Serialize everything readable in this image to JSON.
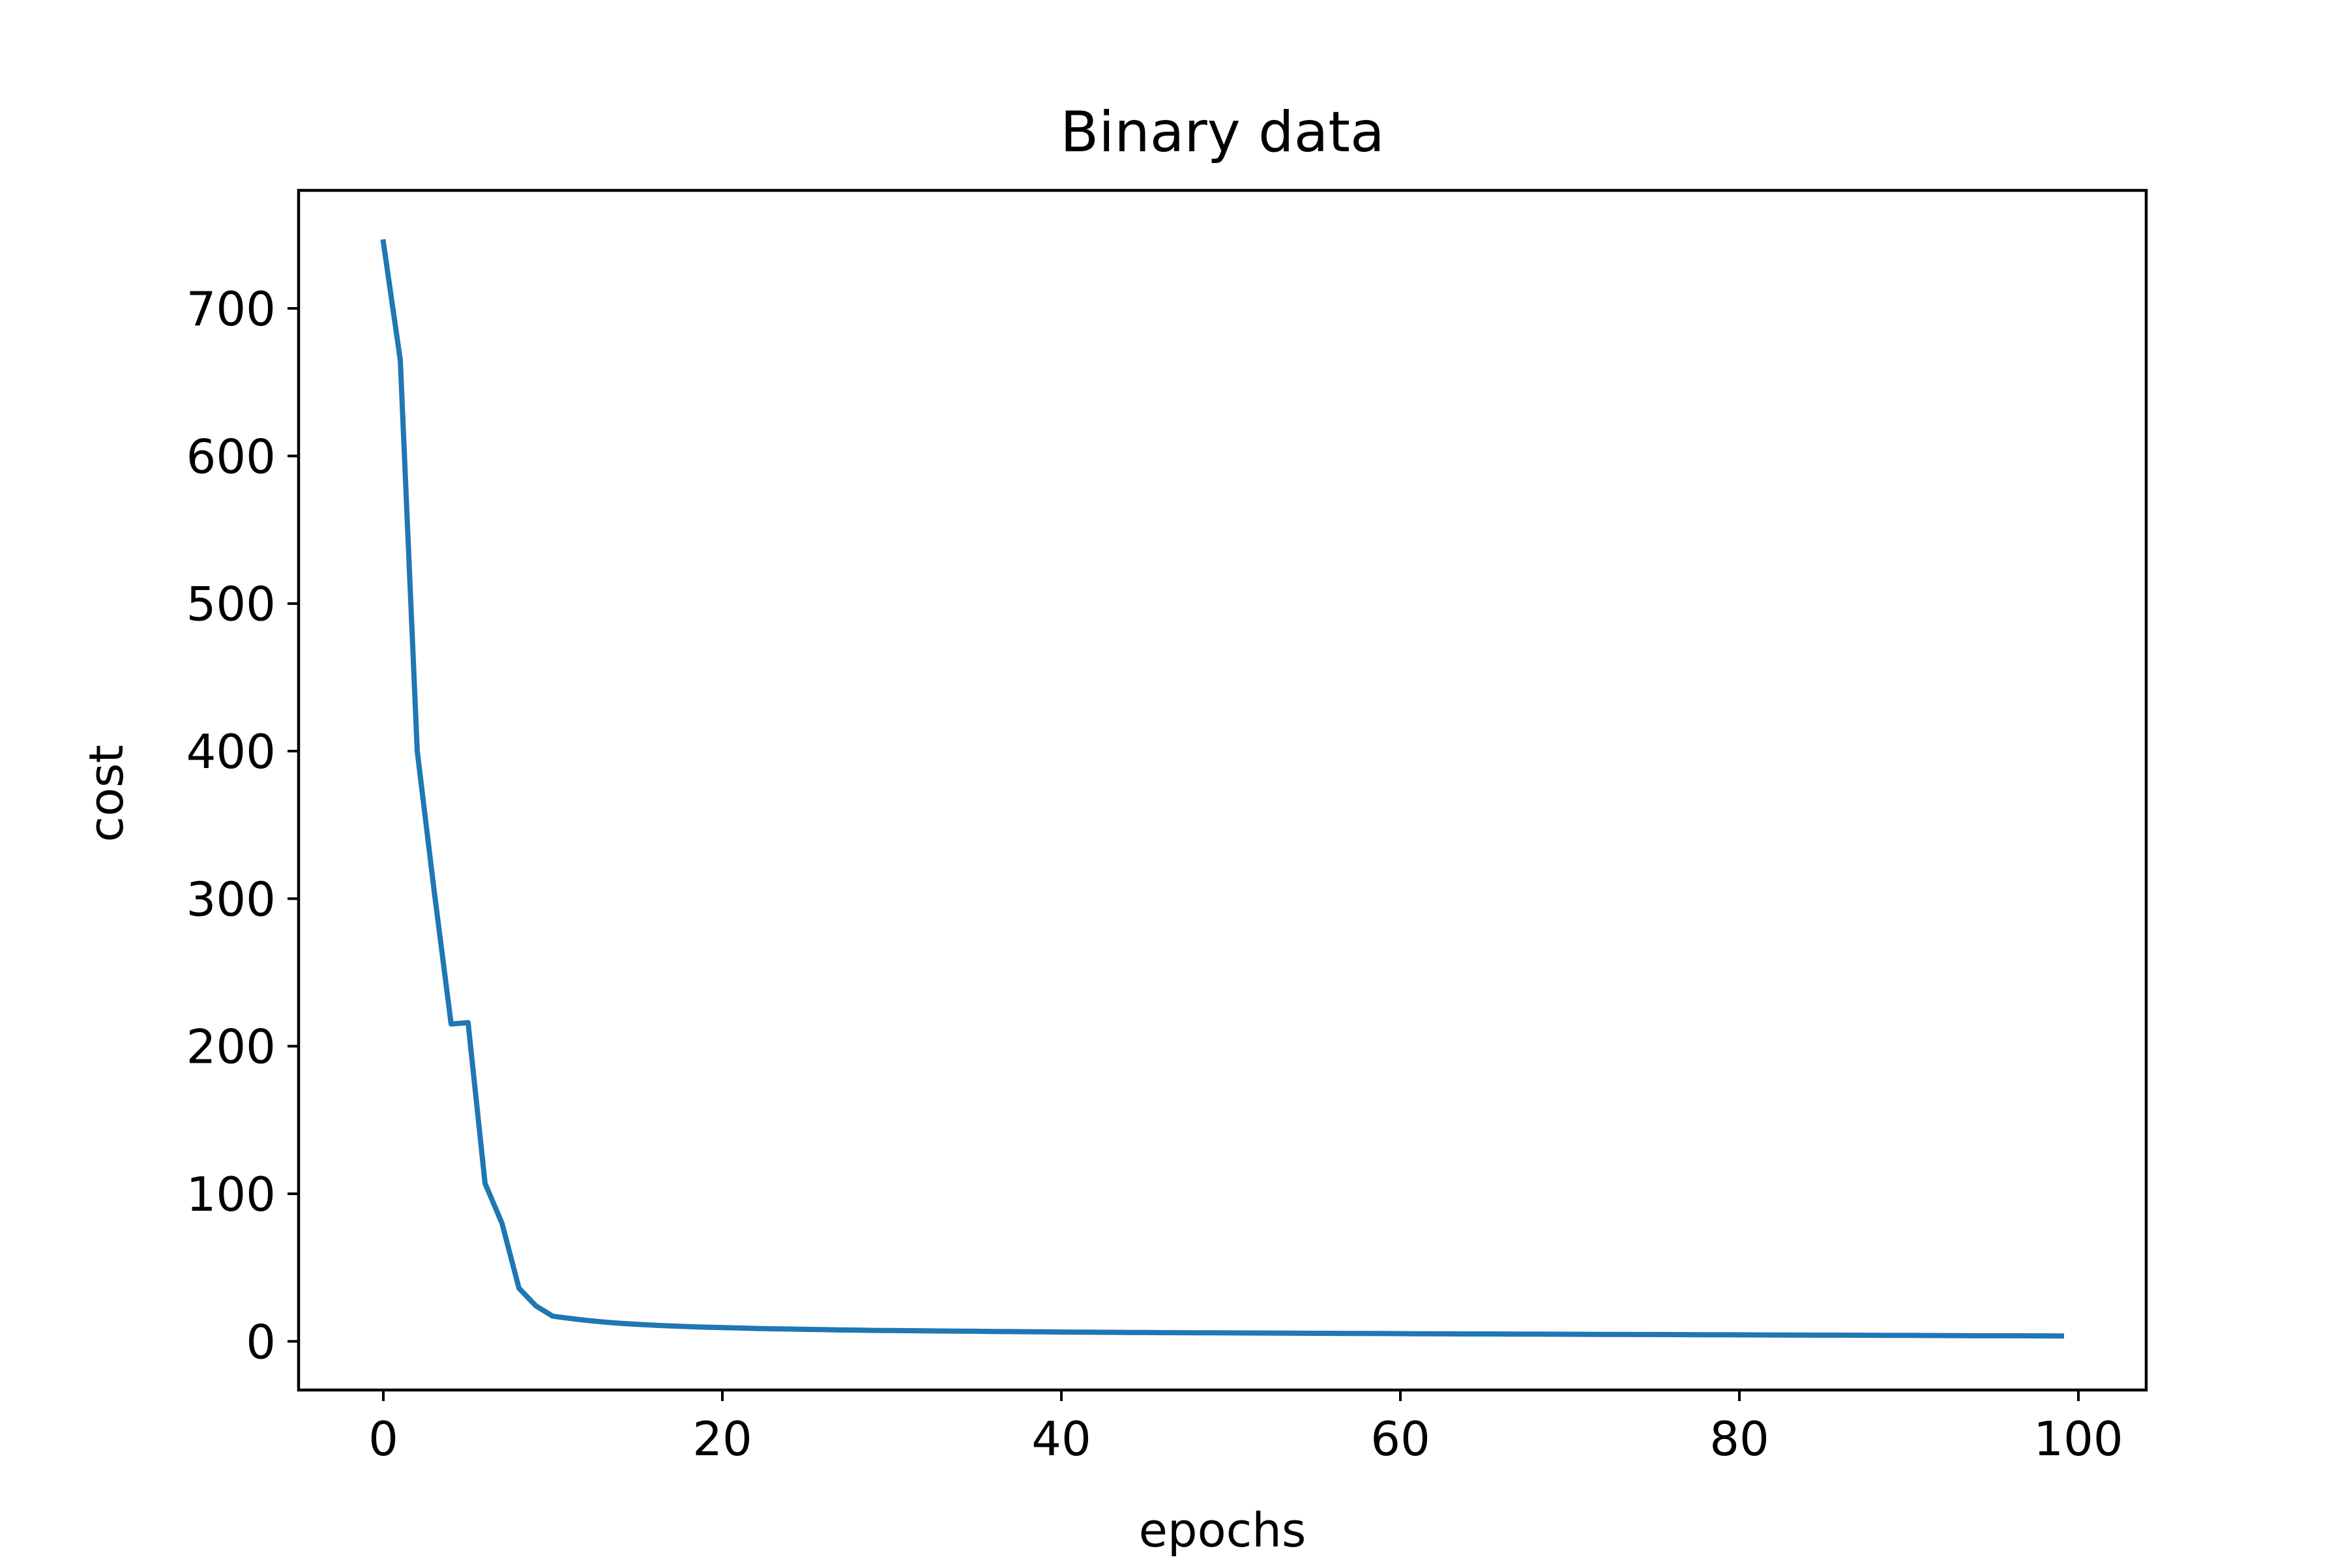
{
  "chart_data": {
    "type": "line",
    "title": "Binary data",
    "xlabel": "epochs",
    "ylabel": "cost",
    "xlim": [
      -5,
      104
    ],
    "ylim": [
      -33,
      780
    ],
    "xticks": [
      0,
      20,
      40,
      60,
      80,
      100
    ],
    "yticks": [
      0,
      100,
      200,
      300,
      400,
      500,
      600,
      700
    ],
    "xtick_labels": [
      "0",
      "20",
      "40",
      "60",
      "80",
      "100"
    ],
    "ytick_labels": [
      "0",
      "100",
      "200",
      "300",
      "400",
      "500",
      "600",
      "700"
    ],
    "grid": false,
    "legend": "none",
    "series_color": "#1f77b4",
    "series": [
      {
        "x": [
          0,
          1,
          2,
          3,
          4,
          5,
          6,
          7,
          8,
          9,
          10,
          11,
          12,
          13,
          14,
          15,
          16,
          17,
          18,
          19,
          20,
          21,
          22,
          23,
          24,
          25,
          26,
          27,
          28,
          29,
          30,
          31,
          32,
          33,
          34,
          35,
          36,
          37,
          38,
          39,
          40,
          41,
          42,
          43,
          44,
          45,
          46,
          47,
          48,
          49,
          50,
          51,
          52,
          53,
          54,
          55,
          56,
          57,
          58,
          59,
          60,
          61,
          62,
          63,
          64,
          65,
          66,
          67,
          68,
          69,
          70,
          71,
          72,
          73,
          74,
          75,
          76,
          77,
          78,
          79,
          80,
          81,
          82,
          83,
          84,
          85,
          86,
          87,
          88,
          89,
          90,
          91,
          92,
          93,
          94,
          95,
          96,
          97,
          98,
          99
        ],
        "values": [
          745,
          665,
          400,
          305,
          215,
          216,
          107,
          80,
          36,
          24,
          17,
          15.5,
          14.2,
          13.1,
          12.2,
          11.5,
          10.9,
          10.4,
          10,
          9.6,
          9.3,
          9,
          8.7,
          8.5,
          8.3,
          8.1,
          7.9,
          7.7,
          7.6,
          7.4,
          7.3,
          7.2,
          7.1,
          7,
          6.9,
          6.8,
          6.7,
          6.6,
          6.5,
          6.4,
          6.3,
          6.2,
          6.15,
          6.1,
          6,
          5.95,
          5.9,
          5.85,
          5.8,
          5.75,
          5.7,
          5.65,
          5.6,
          5.55,
          5.5,
          5.45,
          5.4,
          5.35,
          5.3,
          5.25,
          5.2,
          5.15,
          5.1,
          5.06,
          5.02,
          4.98,
          4.94,
          4.9,
          4.86,
          4.82,
          4.78,
          4.74,
          4.7,
          4.66,
          4.62,
          4.58,
          4.54,
          4.5,
          4.46,
          4.42,
          4.38,
          4.34,
          4.3,
          4.26,
          4.22,
          4.18,
          4.14,
          4.1,
          4.06,
          4.02,
          3.98,
          3.94,
          3.9,
          3.86,
          3.82,
          3.78,
          3.74,
          3.7,
          3.66,
          3.62
        ]
      }
    ]
  }
}
